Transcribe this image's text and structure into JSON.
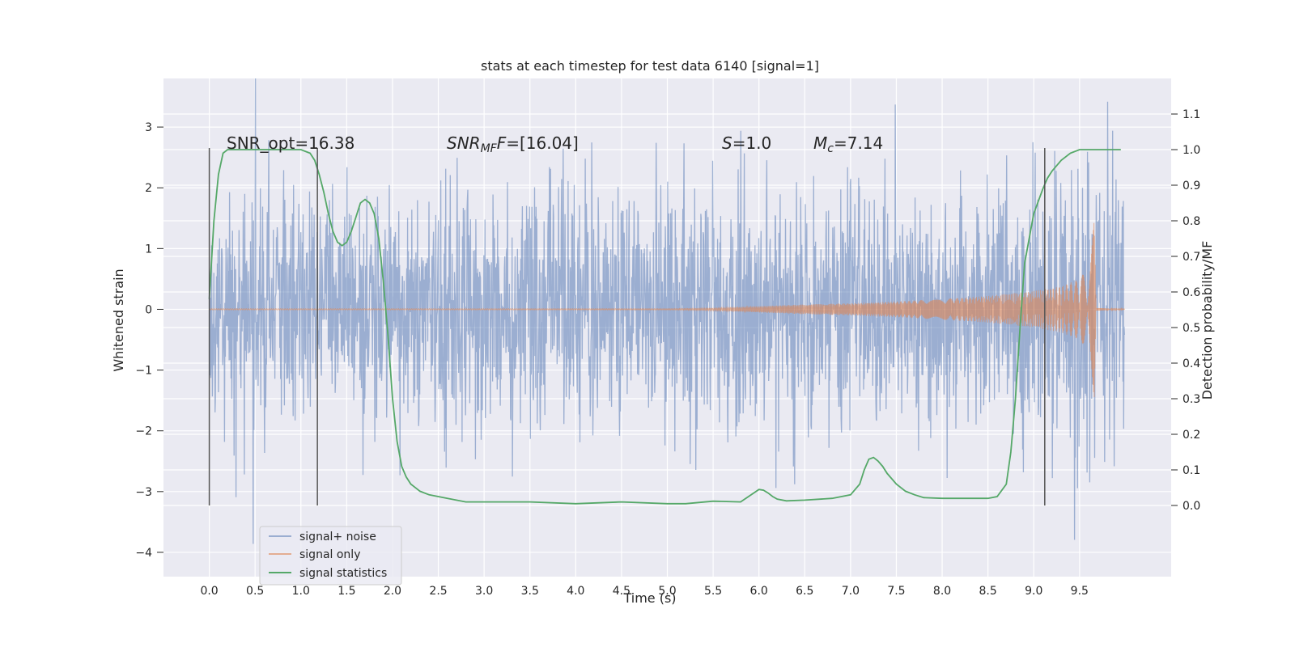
{
  "chart_data": {
    "type": "line",
    "title": "stats at each timestep for test data 6140 [signal=1]",
    "xlabel": "Time (s)",
    "ylabel": "Whitened strain",
    "y2label": "Detection probability/MF",
    "xlim": [
      -0.5,
      10.5
    ],
    "ylim": [
      -4.4,
      3.8
    ],
    "y2lim": [
      -0.2,
      1.2
    ],
    "x_ticks": [
      0.0,
      0.5,
      1.0,
      1.5,
      2.0,
      2.5,
      3.0,
      3.5,
      4.0,
      4.5,
      5.0,
      5.5,
      6.0,
      6.5,
      7.0,
      7.5,
      8.0,
      8.5,
      9.0,
      9.5
    ],
    "x_tick_labels": [
      "0.0",
      "0.5",
      "1.0",
      "1.5",
      "2.0",
      "2.5",
      "3.0",
      "3.5",
      "4.0",
      "4.5",
      "5.0",
      "5.5",
      "6.0",
      "6.5",
      "7.0",
      "7.5",
      "8.0",
      "8.5",
      "9.0",
      "9.5"
    ],
    "y_ticks": [
      -4,
      -3,
      -2,
      -1,
      0,
      1,
      2,
      3
    ],
    "y_tick_labels": [
      "−4",
      "−3",
      "−2",
      "−1",
      "0",
      "1",
      "2",
      "3"
    ],
    "y2_ticks": [
      0.0,
      0.1,
      0.2,
      0.3,
      0.4,
      0.5,
      0.6,
      0.7,
      0.8,
      0.9,
      1.0,
      1.1
    ],
    "y2_tick_labels": [
      "0.0",
      "0.1",
      "0.2",
      "0.3",
      "0.4",
      "0.5",
      "0.6",
      "0.7",
      "0.8",
      "0.9",
      "1.0",
      "1.1"
    ],
    "grid": true,
    "legend_position": "lower-left",
    "annotations": {
      "snr_opt": "SNR_opt=16.38",
      "snr_mf_prefix": "SNR",
      "snr_mf_sub": "MF",
      "snr_mf_value": "=[16.04]",
      "s_label": "S",
      "s_value": "=1.0",
      "mc_label": "M",
      "mc_sub": "c",
      "mc_value": "=7.14"
    },
    "vlines_x": [
      0.0,
      1.18,
      9.12
    ],
    "series": [
      {
        "name": "signal+ noise",
        "color": "#4c72b0",
        "noise_sigma": 1.0,
        "x_range": [
          0.0,
          9.99
        ]
      },
      {
        "name": "signal only",
        "color": "#dd8452",
        "envelope": {
          "x": [
            0.0,
            5.0,
            5.5,
            6.0,
            6.5,
            7.0,
            7.5,
            8.0,
            8.5,
            9.0,
            9.3,
            9.5,
            9.6,
            9.66,
            9.68,
            9.99
          ],
          "amp": [
            0.01,
            0.01,
            0.02,
            0.05,
            0.08,
            0.1,
            0.13,
            0.17,
            0.22,
            0.3,
            0.38,
            0.5,
            0.7,
            1.5,
            0.02,
            0.01
          ]
        }
      },
      {
        "name": "signal statistics",
        "color": "#55a868",
        "x": [
          0.0,
          0.05,
          0.1,
          0.15,
          0.2,
          0.3,
          0.5,
          0.8,
          1.0,
          1.1,
          1.15,
          1.2,
          1.25,
          1.3,
          1.35,
          1.4,
          1.45,
          1.5,
          1.55,
          1.6,
          1.65,
          1.7,
          1.75,
          1.8,
          1.85,
          1.9,
          1.95,
          2.0,
          2.05,
          2.1,
          2.15,
          2.2,
          2.3,
          2.4,
          2.6,
          2.8,
          3.0,
          3.5,
          4.0,
          4.5,
          5.0,
          5.2,
          5.5,
          5.8,
          6.0,
          6.05,
          6.1,
          6.15,
          6.2,
          6.3,
          6.5,
          6.8,
          7.0,
          7.1,
          7.15,
          7.2,
          7.25,
          7.3,
          7.35,
          7.4,
          7.5,
          7.6,
          7.7,
          7.8,
          8.0,
          8.5,
          8.6,
          8.7,
          8.75,
          8.8,
          8.85,
          8.9,
          9.0,
          9.1,
          9.15,
          9.2,
          9.3,
          9.4,
          9.5,
          9.7,
          9.95
        ],
        "values": [
          0.58,
          0.8,
          0.93,
          0.99,
          1.0,
          1.0,
          1.0,
          1.0,
          1.0,
          0.99,
          0.97,
          0.93,
          0.88,
          0.82,
          0.77,
          0.74,
          0.73,
          0.74,
          0.77,
          0.81,
          0.85,
          0.86,
          0.85,
          0.82,
          0.75,
          0.63,
          0.48,
          0.3,
          0.18,
          0.11,
          0.08,
          0.06,
          0.04,
          0.03,
          0.02,
          0.01,
          0.01,
          0.01,
          0.005,
          0.01,
          0.005,
          0.005,
          0.012,
          0.01,
          0.045,
          0.043,
          0.035,
          0.025,
          0.018,
          0.013,
          0.015,
          0.02,
          0.03,
          0.06,
          0.1,
          0.13,
          0.135,
          0.125,
          0.11,
          0.09,
          0.06,
          0.04,
          0.03,
          0.022,
          0.02,
          0.02,
          0.025,
          0.06,
          0.15,
          0.3,
          0.5,
          0.68,
          0.82,
          0.89,
          0.92,
          0.94,
          0.97,
          0.99,
          1.0,
          1.0,
          1.0
        ]
      }
    ]
  }
}
